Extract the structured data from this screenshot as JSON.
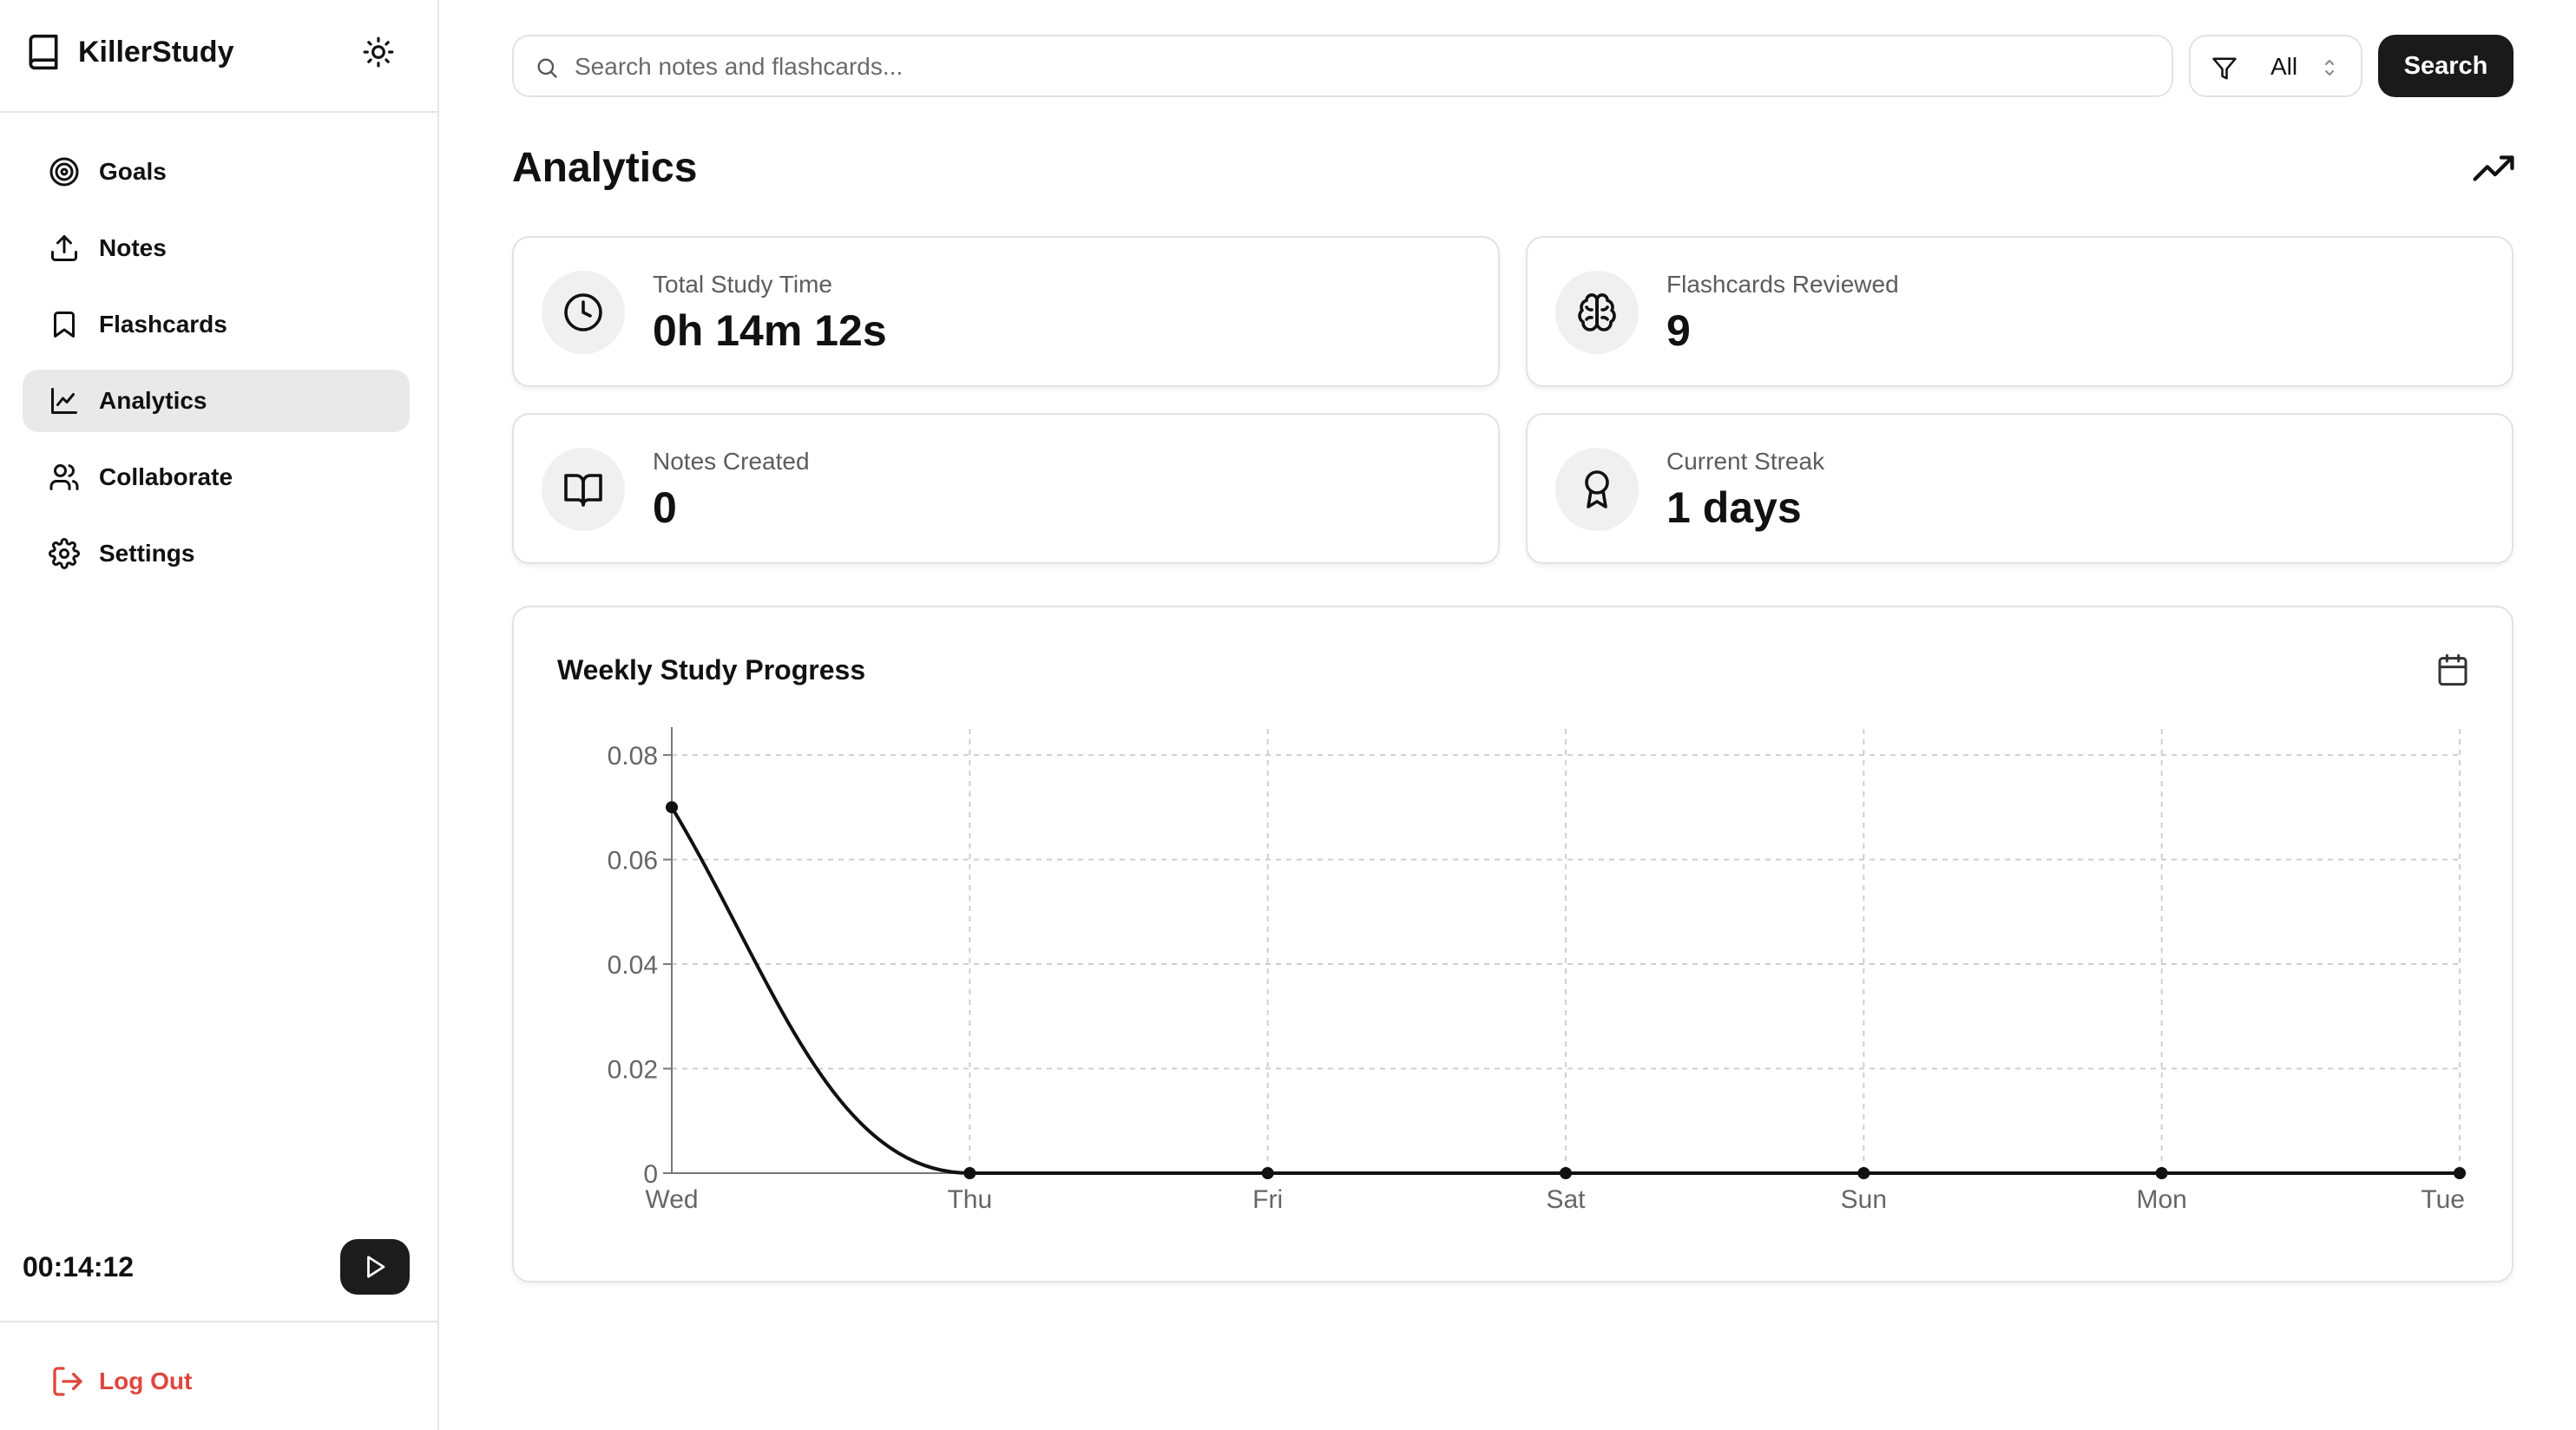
{
  "app": {
    "name": "KillerStudy",
    "accent_color": "#1a1a1a",
    "danger_color": "#e0463d"
  },
  "sidebar": {
    "items": [
      {
        "label": "Goals",
        "icon": "target-icon",
        "active": false
      },
      {
        "label": "Notes",
        "icon": "upload-icon",
        "active": false
      },
      {
        "label": "Flashcards",
        "icon": "bookmark-icon",
        "active": false
      },
      {
        "label": "Analytics",
        "icon": "line-chart-icon",
        "active": true
      },
      {
        "label": "Collaborate",
        "icon": "users-icon",
        "active": false
      },
      {
        "label": "Settings",
        "icon": "gear-icon",
        "active": false
      }
    ],
    "timer": "00:14:12",
    "logout_label": "Log Out"
  },
  "search": {
    "placeholder": "Search notes and flashcards...",
    "value": "",
    "filter_value": "All",
    "button_label": "Search"
  },
  "page": {
    "title": "Analytics"
  },
  "stats": [
    {
      "label": "Total Study Time",
      "value": "0h 14m 12s",
      "icon": "clock-icon"
    },
    {
      "label": "Flashcards Reviewed",
      "value": "9",
      "icon": "brain-icon"
    },
    {
      "label": "Notes Created",
      "value": "0",
      "icon": "book-open-icon"
    },
    {
      "label": "Current Streak",
      "value": "1 days",
      "icon": "award-icon"
    }
  ],
  "chart": {
    "title": "Weekly Study Progress"
  },
  "chart_data": {
    "type": "line",
    "categories": [
      "Wed",
      "Thu",
      "Fri",
      "Sat",
      "Sun",
      "Mon",
      "Tue"
    ],
    "values": [
      0.07,
      0,
      0,
      0,
      0,
      0,
      0
    ],
    "ylim": [
      0,
      0.085
    ],
    "yticks": [
      0,
      0.02,
      0.04,
      0.06,
      0.08
    ],
    "ytick_labels": [
      "0",
      "0.02",
      "0.04",
      "0.06",
      "0.08"
    ],
    "grid": true,
    "line_color": "#111111",
    "title": "",
    "xlabel": "",
    "ylabel": ""
  }
}
